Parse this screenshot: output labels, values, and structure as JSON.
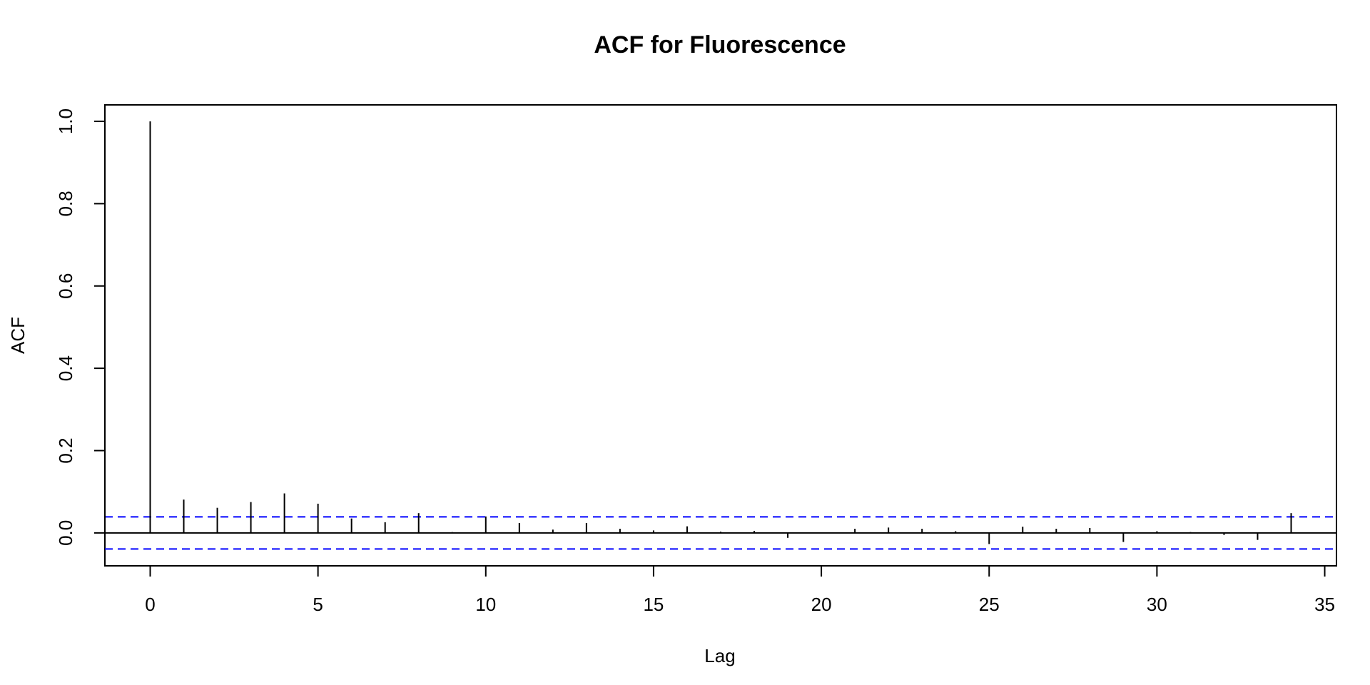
{
  "chart_data": {
    "type": "bar",
    "title": "ACF for Fluorescence",
    "xlabel": "Lag",
    "ylabel": "ACF",
    "x": [
      0,
      1,
      2,
      3,
      4,
      5,
      6,
      7,
      8,
      9,
      10,
      11,
      12,
      13,
      14,
      15,
      16,
      17,
      18,
      19,
      20,
      21,
      22,
      23,
      24,
      25,
      26,
      27,
      28,
      29,
      30,
      31,
      32,
      33,
      34
    ],
    "values": [
      1.0,
      0.081,
      0.061,
      0.075,
      0.096,
      0.071,
      0.035,
      0.026,
      0.048,
      0.002,
      0.04,
      0.024,
      0.008,
      0.024,
      0.01,
      0.006,
      0.016,
      0.003,
      0.005,
      -0.012,
      0.001,
      0.01,
      0.013,
      0.01,
      0.004,
      -0.027,
      0.015,
      0.01,
      0.012,
      -0.022,
      0.004,
      0.002,
      -0.005,
      -0.017,
      0.048
    ],
    "conf_limits": [
      0.039,
      -0.039
    ],
    "xlim": [
      -1.35,
      35.35
    ],
    "ylim": [
      -0.08,
      1.04
    ],
    "xticks": [
      0,
      5,
      10,
      15,
      20,
      25,
      30,
      35
    ],
    "xtick_labels": [
      "0",
      "5",
      "10",
      "15",
      "20",
      "25",
      "30",
      "35"
    ],
    "yticks": [
      0.0,
      0.2,
      0.4,
      0.6,
      0.8,
      1.0
    ],
    "ytick_labels": [
      "0.0",
      "0.2",
      "0.4",
      "0.6",
      "0.8",
      "1.0"
    ],
    "grid": false,
    "colors": {
      "bars": "#000000",
      "conf_lines": "#0000ff",
      "zero_line": "#000000",
      "frame": "#000000"
    }
  }
}
